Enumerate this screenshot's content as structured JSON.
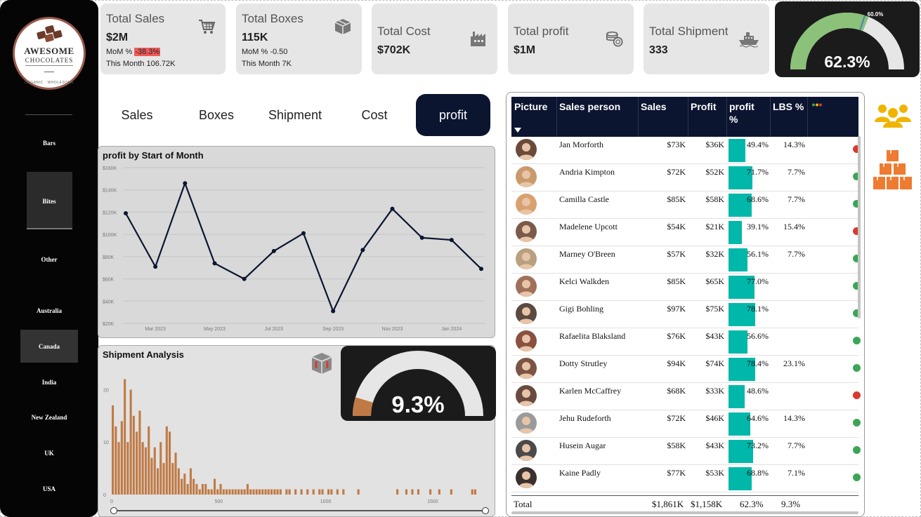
{
  "sidebar": {
    "logo": {
      "title": "AWESOME",
      "subtitle": "CHOCOLATES",
      "tagline": "ORGANIC · WHOLESOME"
    },
    "categories": [
      {
        "label": "Bars"
      },
      {
        "label": "Bites"
      },
      {
        "label": "Other"
      }
    ],
    "countries": [
      {
        "label": "Australia"
      },
      {
        "label": "Canada"
      },
      {
        "label": "India"
      },
      {
        "label": "New Zealand"
      },
      {
        "label": "UK"
      },
      {
        "label": "USA"
      }
    ]
  },
  "kpis": {
    "sales": {
      "title": "Total Sales",
      "value": "$2M",
      "mom_label": "MoM %",
      "mom_value": "-38.3%",
      "month_label": "This Month",
      "month_value": "106.72K",
      "icon": "cart-icon"
    },
    "boxes": {
      "title": "Total Boxes",
      "value": "115K",
      "mom_label": "MoM %",
      "mom_value": "-0.50",
      "month_label": "This Month",
      "month_value": "7K",
      "icon": "box-icon"
    },
    "cost": {
      "title": "Total Cost",
      "value": "$702K",
      "icon": "factory-icon"
    },
    "profit": {
      "title": "Total profit",
      "value": "$1M",
      "icon": "coins-icon"
    },
    "shipment": {
      "title": "Total Shipment",
      "value": "333",
      "icon": "ship-icon"
    }
  },
  "profit_gauge": {
    "value_label": "62.3%",
    "target_label": "60.0%",
    "value": 62.3,
    "target": 60.0,
    "colors": {
      "fill": "#8cc17a",
      "track": "#e6e6e6",
      "target": "#4a7fbf"
    }
  },
  "tabs": [
    {
      "label": "Sales"
    },
    {
      "label": "Boxes"
    },
    {
      "label": "Shipment"
    },
    {
      "label": "Cost"
    },
    {
      "label": "profit",
      "active": true
    }
  ],
  "chart_data": [
    {
      "type": "line",
      "title": "profit by Start of Month",
      "x": [
        "Feb 2023",
        "Mar 2023",
        "Apr 2023",
        "May 2023",
        "Jun 2023",
        "Jul 2023",
        "Aug 2023",
        "Sep 2023",
        "Oct 2023",
        "Nov 2023",
        "Dec 2023",
        "Jan 2024",
        "Feb 2024"
      ],
      "values": [
        119000,
        71000,
        146000,
        74000,
        60000,
        85000,
        101000,
        31000,
        86000,
        123000,
        97000,
        95000,
        69000
      ],
      "x_ticks": [
        "Mar 2023",
        "May 2023",
        "Jul 2023",
        "Sep 2023",
        "Nov 2023",
        "Jan 2024"
      ],
      "y_ticks": [
        "$20K",
        "$40K",
        "$60K",
        "$80K",
        "$100K",
        "$120K",
        "$140K",
        "$160K"
      ],
      "ylim": [
        20000,
        160000
      ],
      "grid": true,
      "color": "#0b1530"
    },
    {
      "type": "bar",
      "title": "Shipment Analysis",
      "x_ticks": [
        "0",
        "500",
        "1000",
        "1500"
      ],
      "y_ticks": [
        "0",
        "10",
        "20"
      ],
      "ylim": [
        0,
        23
      ],
      "xlim": [
        0,
        1750
      ],
      "color": "#c07a45",
      "bins": [
        [
          0,
          17
        ],
        [
          14,
          13
        ],
        [
          28,
          10
        ],
        [
          42,
          14
        ],
        [
          56,
          22
        ],
        [
          70,
          10
        ],
        [
          84,
          20
        ],
        [
          98,
          15
        ],
        [
          112,
          12
        ],
        [
          126,
          16
        ],
        [
          140,
          10
        ],
        [
          154,
          9
        ],
        [
          168,
          13
        ],
        [
          182,
          7
        ],
        [
          196,
          9
        ],
        [
          210,
          5
        ],
        [
          224,
          10
        ],
        [
          238,
          6
        ],
        [
          252,
          13
        ],
        [
          266,
          12
        ],
        [
          280,
          6
        ],
        [
          294,
          8
        ],
        [
          308,
          5
        ],
        [
          322,
          3
        ],
        [
          336,
          4
        ],
        [
          350,
          2
        ],
        [
          364,
          5
        ],
        [
          378,
          3
        ],
        [
          392,
          2
        ],
        [
          406,
          1
        ],
        [
          420,
          2
        ],
        [
          434,
          2
        ],
        [
          448,
          1
        ],
        [
          462,
          1
        ],
        [
          476,
          3
        ],
        [
          490,
          1
        ],
        [
          504,
          2
        ],
        [
          518,
          1
        ],
        [
          532,
          1
        ],
        [
          546,
          1
        ],
        [
          560,
          1
        ],
        [
          574,
          1
        ],
        [
          588,
          1
        ],
        [
          602,
          1
        ],
        [
          616,
          1
        ],
        [
          630,
          2
        ],
        [
          644,
          1
        ],
        [
          658,
          1
        ],
        [
          672,
          1
        ],
        [
          686,
          1
        ],
        [
          700,
          1
        ],
        [
          714,
          1
        ],
        [
          728,
          1
        ],
        [
          742,
          1
        ],
        [
          756,
          1
        ],
        [
          770,
          1
        ],
        [
          784,
          1
        ],
        [
          812,
          1
        ],
        [
          826,
          1
        ],
        [
          854,
          1
        ],
        [
          882,
          1
        ],
        [
          910,
          1
        ],
        [
          938,
          1
        ],
        [
          966,
          1
        ],
        [
          980,
          1
        ],
        [
          1008,
          1
        ],
        [
          1022,
          1
        ],
        [
          1050,
          1
        ],
        [
          1078,
          1
        ],
        [
          1148,
          1
        ],
        [
          1330,
          1
        ],
        [
          1372,
          1
        ],
        [
          1400,
          1
        ],
        [
          1428,
          1
        ],
        [
          1484,
          1
        ],
        [
          1526,
          1
        ],
        [
          1582,
          1
        ],
        [
          1680,
          1
        ],
        [
          1694,
          1
        ]
      ]
    }
  ],
  "shipment_gauge": {
    "value_label": "9.3%",
    "value": 9.3,
    "colors": {
      "fill": "#c07a45",
      "track": "#e6e6e6"
    }
  },
  "table": {
    "headers": {
      "picture": "Picture",
      "person": "Sales person",
      "sales": "Sales",
      "profit": "Profit",
      "profit_pct": "profit %",
      "lbs": "LBS %"
    },
    "rows": [
      {
        "name": "Jan Morforth",
        "sales": "$73K",
        "profit": "$36K",
        "pct": "49.4%",
        "pct_value": 49.4,
        "lbs": "14.3%",
        "status": "bad"
      },
      {
        "name": "Andria Kimpton",
        "sales": "$72K",
        "profit": "$52K",
        "pct": "71.7%",
        "pct_value": 71.7,
        "lbs": "7.7%",
        "status": "good"
      },
      {
        "name": "Camilla Castle",
        "sales": "$85K",
        "profit": "$58K",
        "pct": "68.6%",
        "pct_value": 68.6,
        "lbs": "7.7%",
        "status": "good"
      },
      {
        "name": "Madelene Upcott",
        "sales": "$54K",
        "profit": "$21K",
        "pct": "39.1%",
        "pct_value": 39.1,
        "lbs": "15.4%",
        "status": "bad"
      },
      {
        "name": "Marney O'Breen",
        "sales": "$57K",
        "profit": "$32K",
        "pct": "56.1%",
        "pct_value": 56.1,
        "lbs": "7.7%",
        "status": "good"
      },
      {
        "name": "Kelci Walkden",
        "sales": "$85K",
        "profit": "$65K",
        "pct": "77.0%",
        "pct_value": 77.0,
        "lbs": "",
        "status": "good"
      },
      {
        "name": "Gigi Bohling",
        "sales": "$97K",
        "profit": "$75K",
        "pct": "78.1%",
        "pct_value": 78.1,
        "lbs": "",
        "status": "good"
      },
      {
        "name": "Rafaelita Blaksland",
        "sales": "$76K",
        "profit": "$43K",
        "pct": "56.6%",
        "pct_value": 56.6,
        "lbs": "",
        "status": "good"
      },
      {
        "name": "Dotty Strutley",
        "sales": "$94K",
        "profit": "$74K",
        "pct": "78.4%",
        "pct_value": 78.4,
        "lbs": "23.1%",
        "status": "good"
      },
      {
        "name": "Karlen McCaffrey",
        "sales": "$68K",
        "profit": "$33K",
        "pct": "48.6%",
        "pct_value": 48.6,
        "lbs": "",
        "status": "bad"
      },
      {
        "name": "Jehu Rudeforth",
        "sales": "$72K",
        "profit": "$46K",
        "pct": "64.6%",
        "pct_value": 64.6,
        "lbs": "14.3%",
        "status": "good"
      },
      {
        "name": "Husein Augar",
        "sales": "$58K",
        "profit": "$43K",
        "pct": "73.2%",
        "pct_value": 73.2,
        "lbs": "7.7%",
        "status": "good"
      },
      {
        "name": "Kaine Padly",
        "sales": "$77K",
        "profit": "$53K",
        "pct": "68.8%",
        "pct_value": 68.8,
        "lbs": "7.1%",
        "status": "good"
      }
    ],
    "total": {
      "label": "Total",
      "sales": "$1,861K",
      "profit": "$1,158K",
      "pct": "62.3%",
      "lbs": "9.3%"
    },
    "colors": {
      "header": "#0b1530",
      "bar": "#00b8a9",
      "good": "#3aa655",
      "bad": "#d93b30"
    }
  },
  "colors": {
    "kpi_bg": "#e6e6e6",
    "accent": "#0b1530",
    "people_icon": "#f0b400",
    "boxes_icon": "#ee7b30"
  }
}
